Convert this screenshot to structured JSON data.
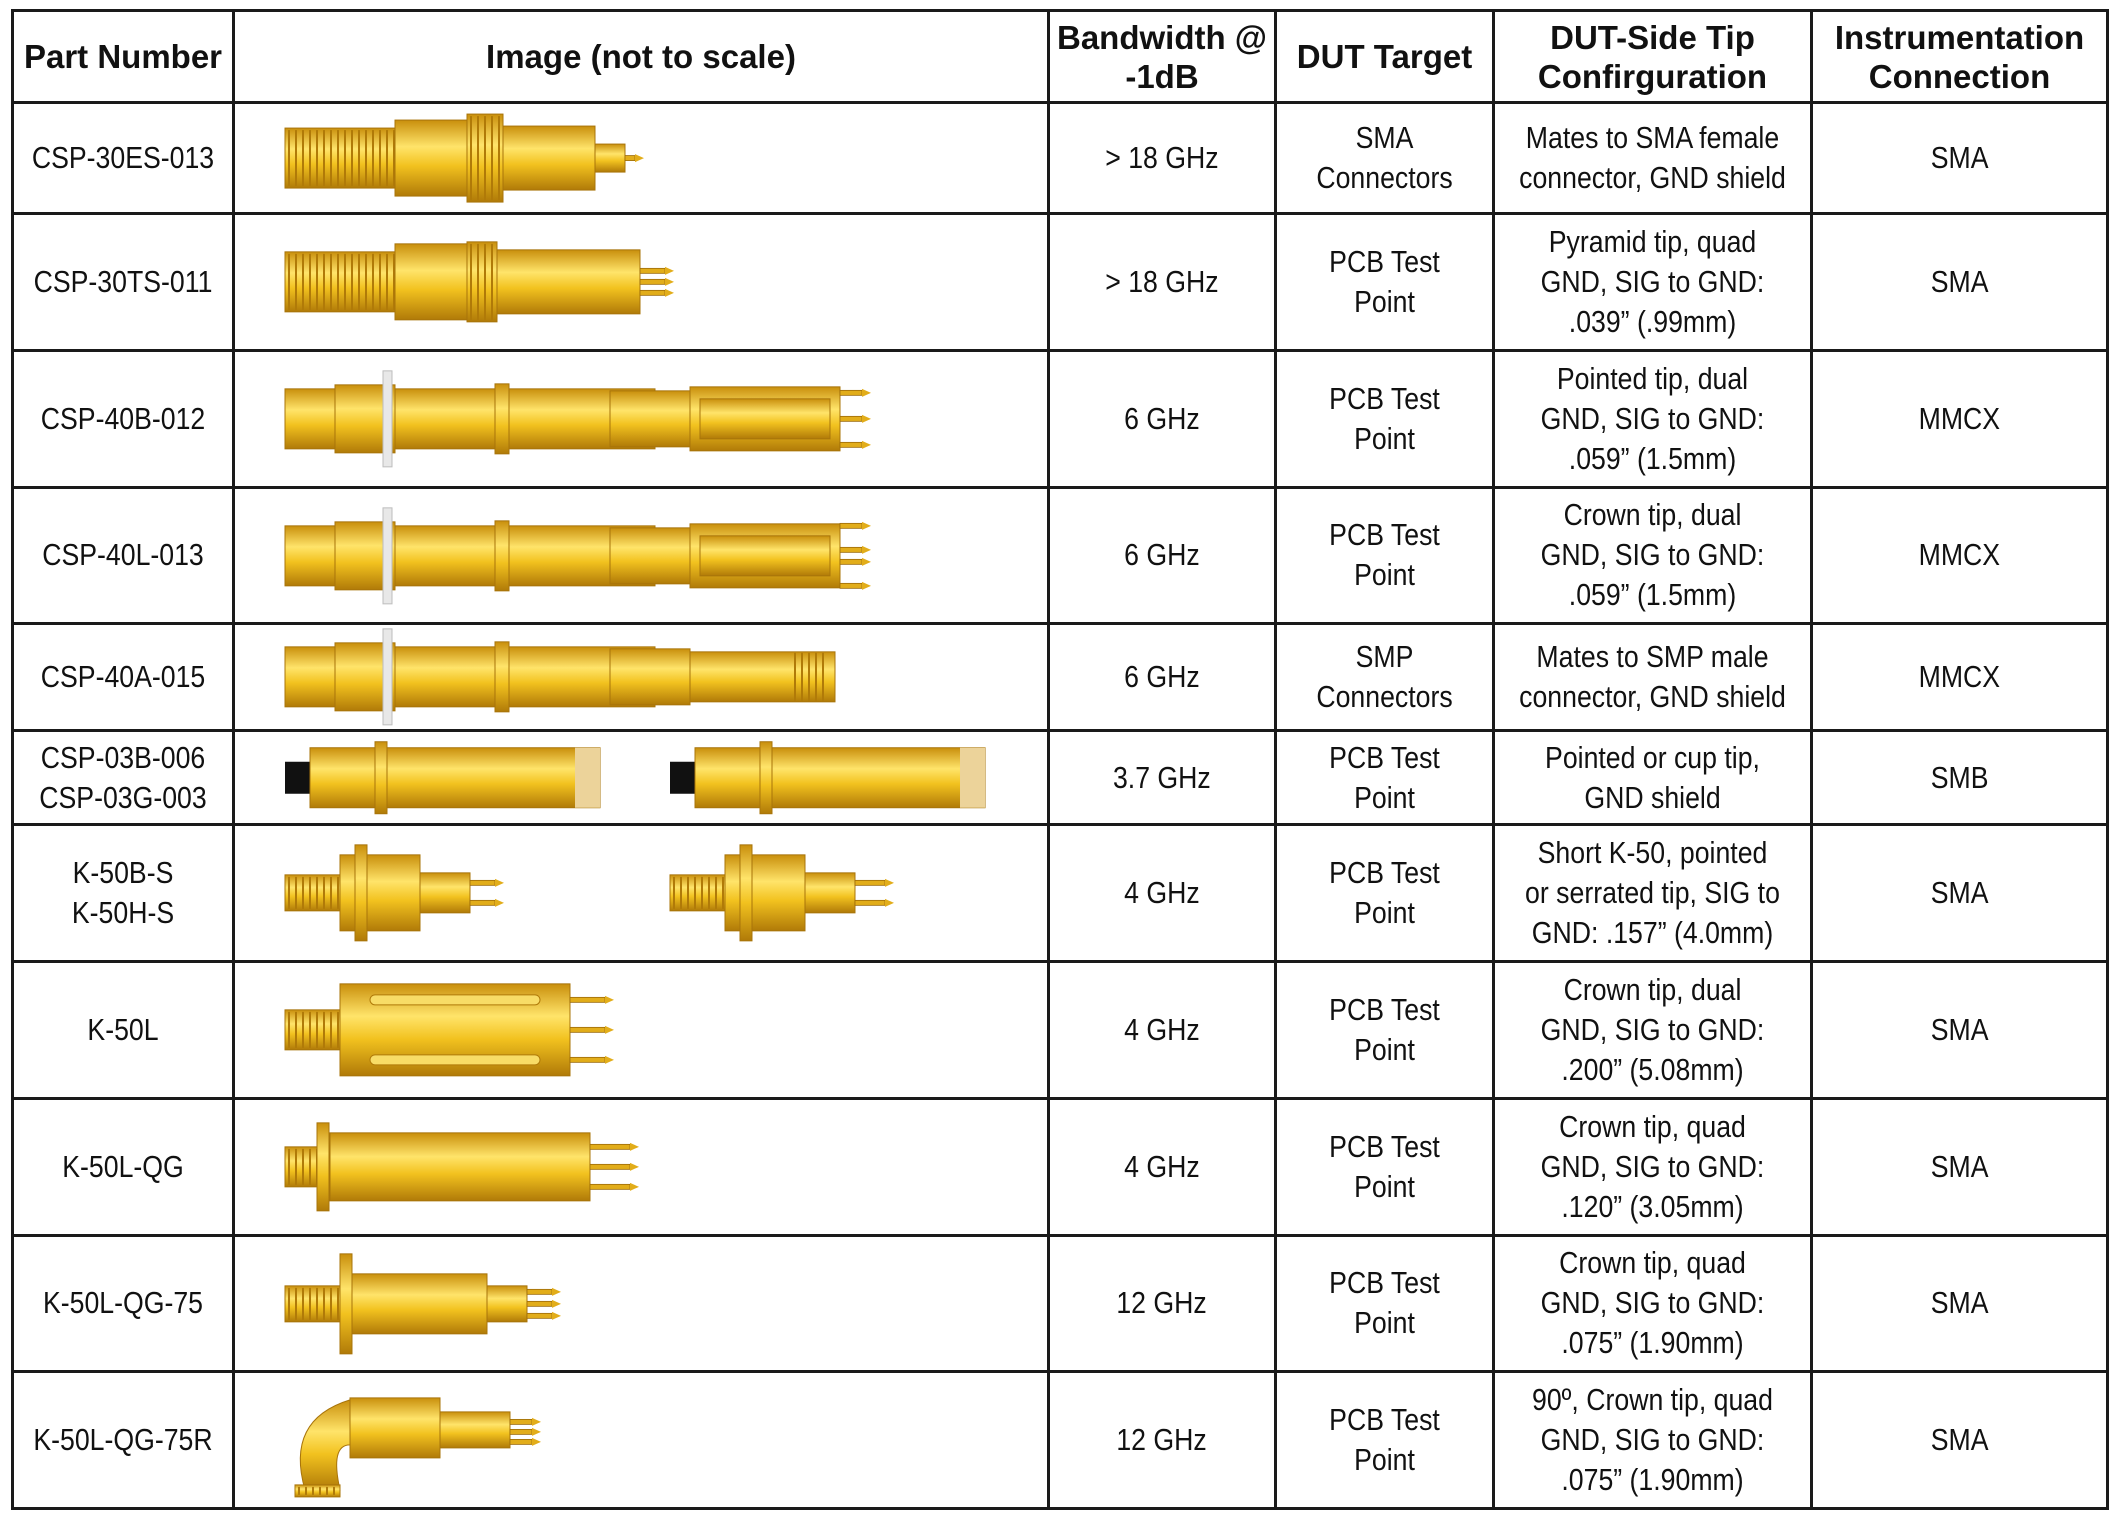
{
  "header": {
    "part_number": "Part Number",
    "image": "Image (not to scale)",
    "bandwidth": [
      "Bandwidth @",
      "-1dB"
    ],
    "dut_target": "DUT Target",
    "tip_config": [
      "DUT-Side Tip",
      "Confirguration"
    ],
    "instrumentation": [
      "Instrumentation",
      "Connection"
    ]
  },
  "rows": [
    {
      "part": [
        "CSP-30ES-013"
      ],
      "bandwidth": "> 18 GHz",
      "dut": [
        "SMA",
        "Connectors"
      ],
      "tip": [
        "Mates to SMA female",
        "connector, GND shield"
      ],
      "conn": "SMA",
      "image_icon": "sma-socket-probe-icon"
    },
    {
      "part": [
        "CSP-30TS-011"
      ],
      "bandwidth": "> 18 GHz",
      "dut": [
        "PCB Test",
        "Point"
      ],
      "tip": [
        "Pyramid tip, quad",
        "GND, SIG to GND:",
        ".039” (.99mm)"
      ],
      "conn": "SMA",
      "image_icon": "pyramid-tip-probe-icon"
    },
    {
      "part": [
        "CSP-40B-012"
      ],
      "bandwidth": "6 GHz",
      "dut": [
        "PCB Test",
        "Point"
      ],
      "tip": [
        "Pointed tip, dual",
        "GND, SIG to GND:",
        ".059” (1.5mm)"
      ],
      "conn": "MMCX",
      "image_icon": "pointed-tip-probe-icon"
    },
    {
      "part": [
        "CSP-40L-013"
      ],
      "bandwidth": "6 GHz",
      "dut": [
        "PCB Test",
        "Point"
      ],
      "tip": [
        "Crown tip, dual",
        "GND, SIG to GND:",
        ".059” (1.5mm)"
      ],
      "conn": "MMCX",
      "image_icon": "crown-tip-probe-icon"
    },
    {
      "part": [
        "CSP-40A-015"
      ],
      "bandwidth": "6 GHz",
      "dut": [
        "SMP",
        "Connectors"
      ],
      "tip": [
        "Mates to SMP male",
        "connector, GND shield"
      ],
      "conn": "MMCX",
      "image_icon": "smp-socket-probe-icon"
    },
    {
      "part": [
        "CSP-03B-006",
        "CSP-03G-003"
      ],
      "bandwidth": "3.7 GHz",
      "dut": [
        "PCB Test",
        "Point"
      ],
      "tip": [
        "Pointed or cup tip,",
        "GND shield"
      ],
      "conn": "SMB",
      "image_icon": "smb-cable-probe-pair-icon"
    },
    {
      "part": [
        "K-50B-S",
        "K-50H-S"
      ],
      "bandwidth": "4 GHz",
      "dut": [
        "PCB Test",
        "Point"
      ],
      "tip": [
        "Short K-50, pointed",
        "or serrated tip, SIG to",
        "GND:  .157” (4.0mm)"
      ],
      "conn": "SMA",
      "image_icon": "short-k50-probe-pair-icon"
    },
    {
      "part": [
        "K-50L"
      ],
      "bandwidth": "4 GHz",
      "dut": [
        "PCB Test",
        "Point"
      ],
      "tip": [
        "Crown tip, dual",
        "GND, SIG to GND:",
        ".200” (5.08mm)"
      ],
      "conn": "SMA",
      "image_icon": "k50l-probe-icon"
    },
    {
      "part": [
        "K-50L-QG"
      ],
      "bandwidth": "4 GHz",
      "dut": [
        "PCB Test",
        "Point"
      ],
      "tip": [
        "Crown tip, quad",
        "GND, SIG to GND:",
        ".120” (3.05mm)"
      ],
      "conn": "SMA",
      "image_icon": "k50l-qg-probe-icon"
    },
    {
      "part": [
        "K-50L-QG-75"
      ],
      "bandwidth": "12 GHz",
      "dut": [
        "PCB Test",
        "Point"
      ],
      "tip": [
        "Crown tip, quad",
        "GND, SIG to GND:",
        ".075” (1.90mm)"
      ],
      "conn": "SMA",
      "image_icon": "k50l-qg-75-probe-icon"
    },
    {
      "part": [
        "K-50L-QG-75R"
      ],
      "bandwidth": "12 GHz",
      "dut": [
        "PCB Test",
        "Point"
      ],
      "tip": [
        "90º, Crown tip, quad",
        "GND, SIG to GND:",
        ".075” (1.90mm)"
      ],
      "conn": "SMA",
      "image_icon": "right-angle-probe-icon"
    }
  ],
  "colors": {
    "gold_light": "#ffe46a",
    "gold": "#f2c21f",
    "gold_dark": "#c98f0c",
    "border": "#1a1a1a"
  }
}
